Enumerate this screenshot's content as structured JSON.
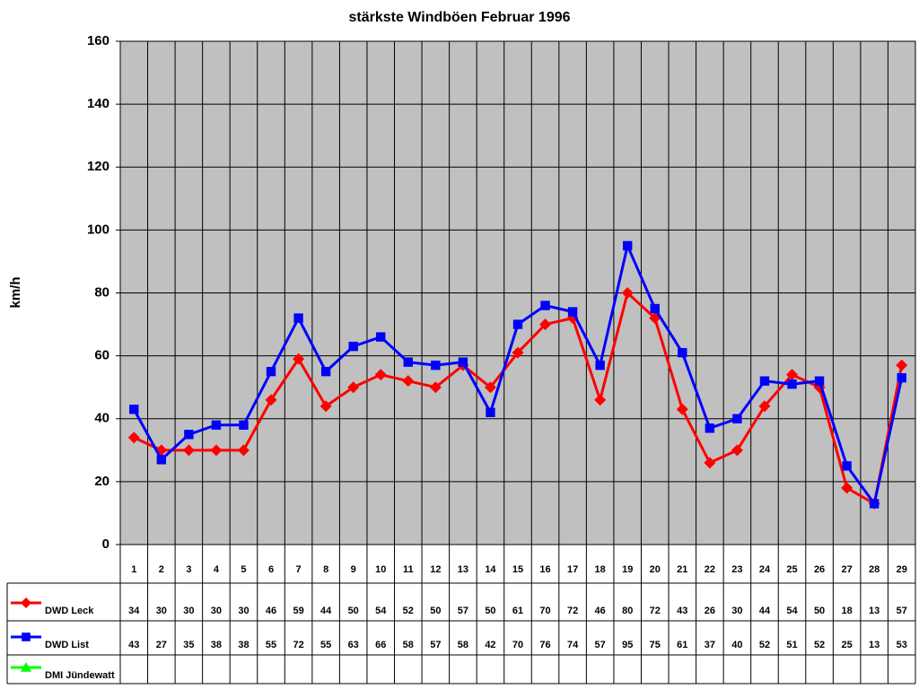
{
  "chart_data": {
    "type": "line",
    "title": "stärkste Windböen Februar 1996",
    "y_label": "km/h",
    "categories": [
      "1",
      "2",
      "3",
      "4",
      "5",
      "6",
      "7",
      "8",
      "9",
      "10",
      "11",
      "12",
      "13",
      "14",
      "15",
      "16",
      "17",
      "18",
      "19",
      "20",
      "21",
      "22",
      "23",
      "24",
      "25",
      "26",
      "27",
      "28",
      "29"
    ],
    "series": [
      {
        "name": "DWD Leck",
        "color": "#ff0000",
        "marker": "diamond",
        "values": [
          34,
          30,
          30,
          30,
          30,
          46,
          59,
          44,
          50,
          54,
          52,
          50,
          57,
          50,
          61,
          70,
          72,
          46,
          80,
          72,
          43,
          26,
          30,
          44,
          54,
          50,
          18,
          13,
          57
        ]
      },
      {
        "name": "DWD List",
        "color": "#0000ff",
        "marker": "square",
        "values": [
          43,
          27,
          35,
          38,
          38,
          55,
          72,
          55,
          63,
          66,
          58,
          57,
          58,
          42,
          70,
          76,
          74,
          57,
          95,
          75,
          61,
          37,
          40,
          52,
          51,
          52,
          25,
          13,
          53
        ]
      },
      {
        "name": "DMI Jündewatt",
        "color": "#00ff00",
        "marker": "triangle",
        "values": [
          null,
          null,
          null,
          null,
          null,
          null,
          null,
          null,
          null,
          null,
          null,
          null,
          null,
          null,
          null,
          null,
          null,
          null,
          null,
          null,
          null,
          null,
          null,
          null,
          null,
          null,
          null,
          null,
          null
        ]
      }
    ],
    "ylim": [
      0,
      160
    ],
    "yticks": [
      0,
      20,
      40,
      60,
      80,
      100,
      120,
      140,
      160
    ],
    "grid": true,
    "data_table": true
  }
}
